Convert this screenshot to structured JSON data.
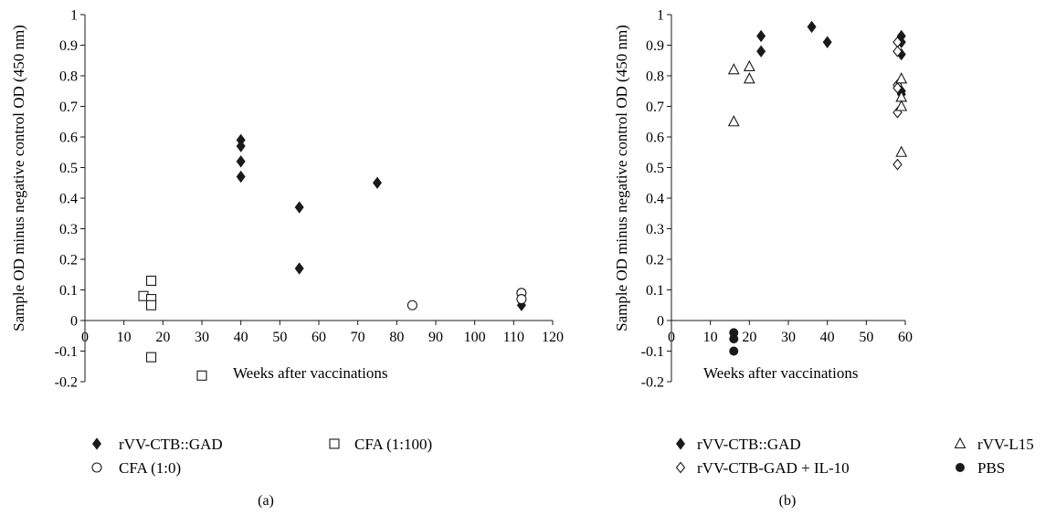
{
  "chart_data": [
    {
      "type": "scatter",
      "panel_label": "(a)",
      "xlabel": "Weeks after vaccinations",
      "ylabel": "Sample OD minus negative control OD (450 nm)",
      "xlim": [
        0,
        120
      ],
      "ylim": [
        -0.2,
        1
      ],
      "xticks": [
        "0",
        "10",
        "20",
        "30",
        "40",
        "50",
        "60",
        "70",
        "80",
        "90",
        "100",
        "110",
        "120"
      ],
      "yticks": [
        "-0.2",
        "-0.1",
        "0",
        "0.1",
        "0.2",
        "0.3",
        "0.4",
        "0.5",
        "0.6",
        "0.7",
        "0.8",
        "0.9",
        "1"
      ],
      "grid": false,
      "legend_position": "bottom",
      "series": [
        {
          "name": "rVV-CTB::GAD",
          "marker": "filled-diamond",
          "color": "#1a1a1a",
          "points": [
            [
              40,
              0.59
            ],
            [
              40,
              0.57
            ],
            [
              40,
              0.52
            ],
            [
              40,
              0.47
            ],
            [
              55,
              0.37
            ],
            [
              55,
              0.17
            ],
            [
              75,
              0.45
            ],
            [
              112,
              0.05
            ]
          ]
        },
        {
          "name": "CFA (1:100)",
          "marker": "open-square",
          "color": "#1a1a1a",
          "points": [
            [
              15,
              0.08
            ],
            [
              17,
              0.13
            ],
            [
              17,
              0.07
            ],
            [
              17,
              0.05
            ],
            [
              17,
              -0.12
            ],
            [
              30,
              -0.18
            ]
          ]
        },
        {
          "name": "CFA (1:0)",
          "marker": "open-circle",
          "color": "#1a1a1a",
          "points": [
            [
              84,
              0.05
            ],
            [
              112,
              0.09
            ],
            [
              112,
              0.07
            ]
          ]
        }
      ]
    },
    {
      "type": "scatter",
      "panel_label": "(b)",
      "xlabel": "Weeks after vaccinations",
      "ylabel": "Sample OD minus negative control OD (450 nm)",
      "xlim": [
        0,
        60
      ],
      "ylim": [
        -0.2,
        1
      ],
      "xticks": [
        "0",
        "10",
        "20",
        "30",
        "40",
        "50",
        "60"
      ],
      "yticks": [
        "-0.2",
        "-0.1",
        "0",
        "0.1",
        "0.2",
        "0.3",
        "0.4",
        "0.5",
        "0.6",
        "0.7",
        "0.8",
        "0.9",
        "1"
      ],
      "grid": false,
      "legend_position": "bottom",
      "series": [
        {
          "name": "rVV-CTB::GAD",
          "marker": "filled-diamond",
          "color": "#1a1a1a",
          "points": [
            [
              23,
              0.93
            ],
            [
              23,
              0.88
            ],
            [
              36,
              0.96
            ],
            [
              40,
              0.91
            ],
            [
              59,
              0.93
            ],
            [
              59,
              0.91
            ],
            [
              59,
              0.87
            ],
            [
              59,
              0.75
            ],
            [
              59,
              0.74
            ]
          ]
        },
        {
          "name": "rVV-CTB-GAD + IL-10",
          "marker": "open-diamond",
          "color": "#1a1a1a",
          "points": [
            [
              58,
              0.91
            ],
            [
              58,
              0.88
            ],
            [
              58,
              0.77
            ],
            [
              58,
              0.76
            ],
            [
              58,
              0.68
            ],
            [
              58,
              0.51
            ]
          ]
        },
        {
          "name": "rVV-L15",
          "marker": "open-triangle",
          "color": "#1a1a1a",
          "points": [
            [
              16,
              0.82
            ],
            [
              16,
              0.65
            ],
            [
              20,
              0.83
            ],
            [
              20,
              0.79
            ],
            [
              59,
              0.79
            ],
            [
              59,
              0.73
            ],
            [
              59,
              0.7
            ],
            [
              59,
              0.55
            ]
          ]
        },
        {
          "name": "PBS",
          "marker": "filled-circle",
          "color": "#1a1a1a",
          "points": [
            [
              16,
              -0.04
            ],
            [
              16,
              -0.06
            ],
            [
              16,
              -0.1
            ]
          ]
        }
      ]
    }
  ]
}
